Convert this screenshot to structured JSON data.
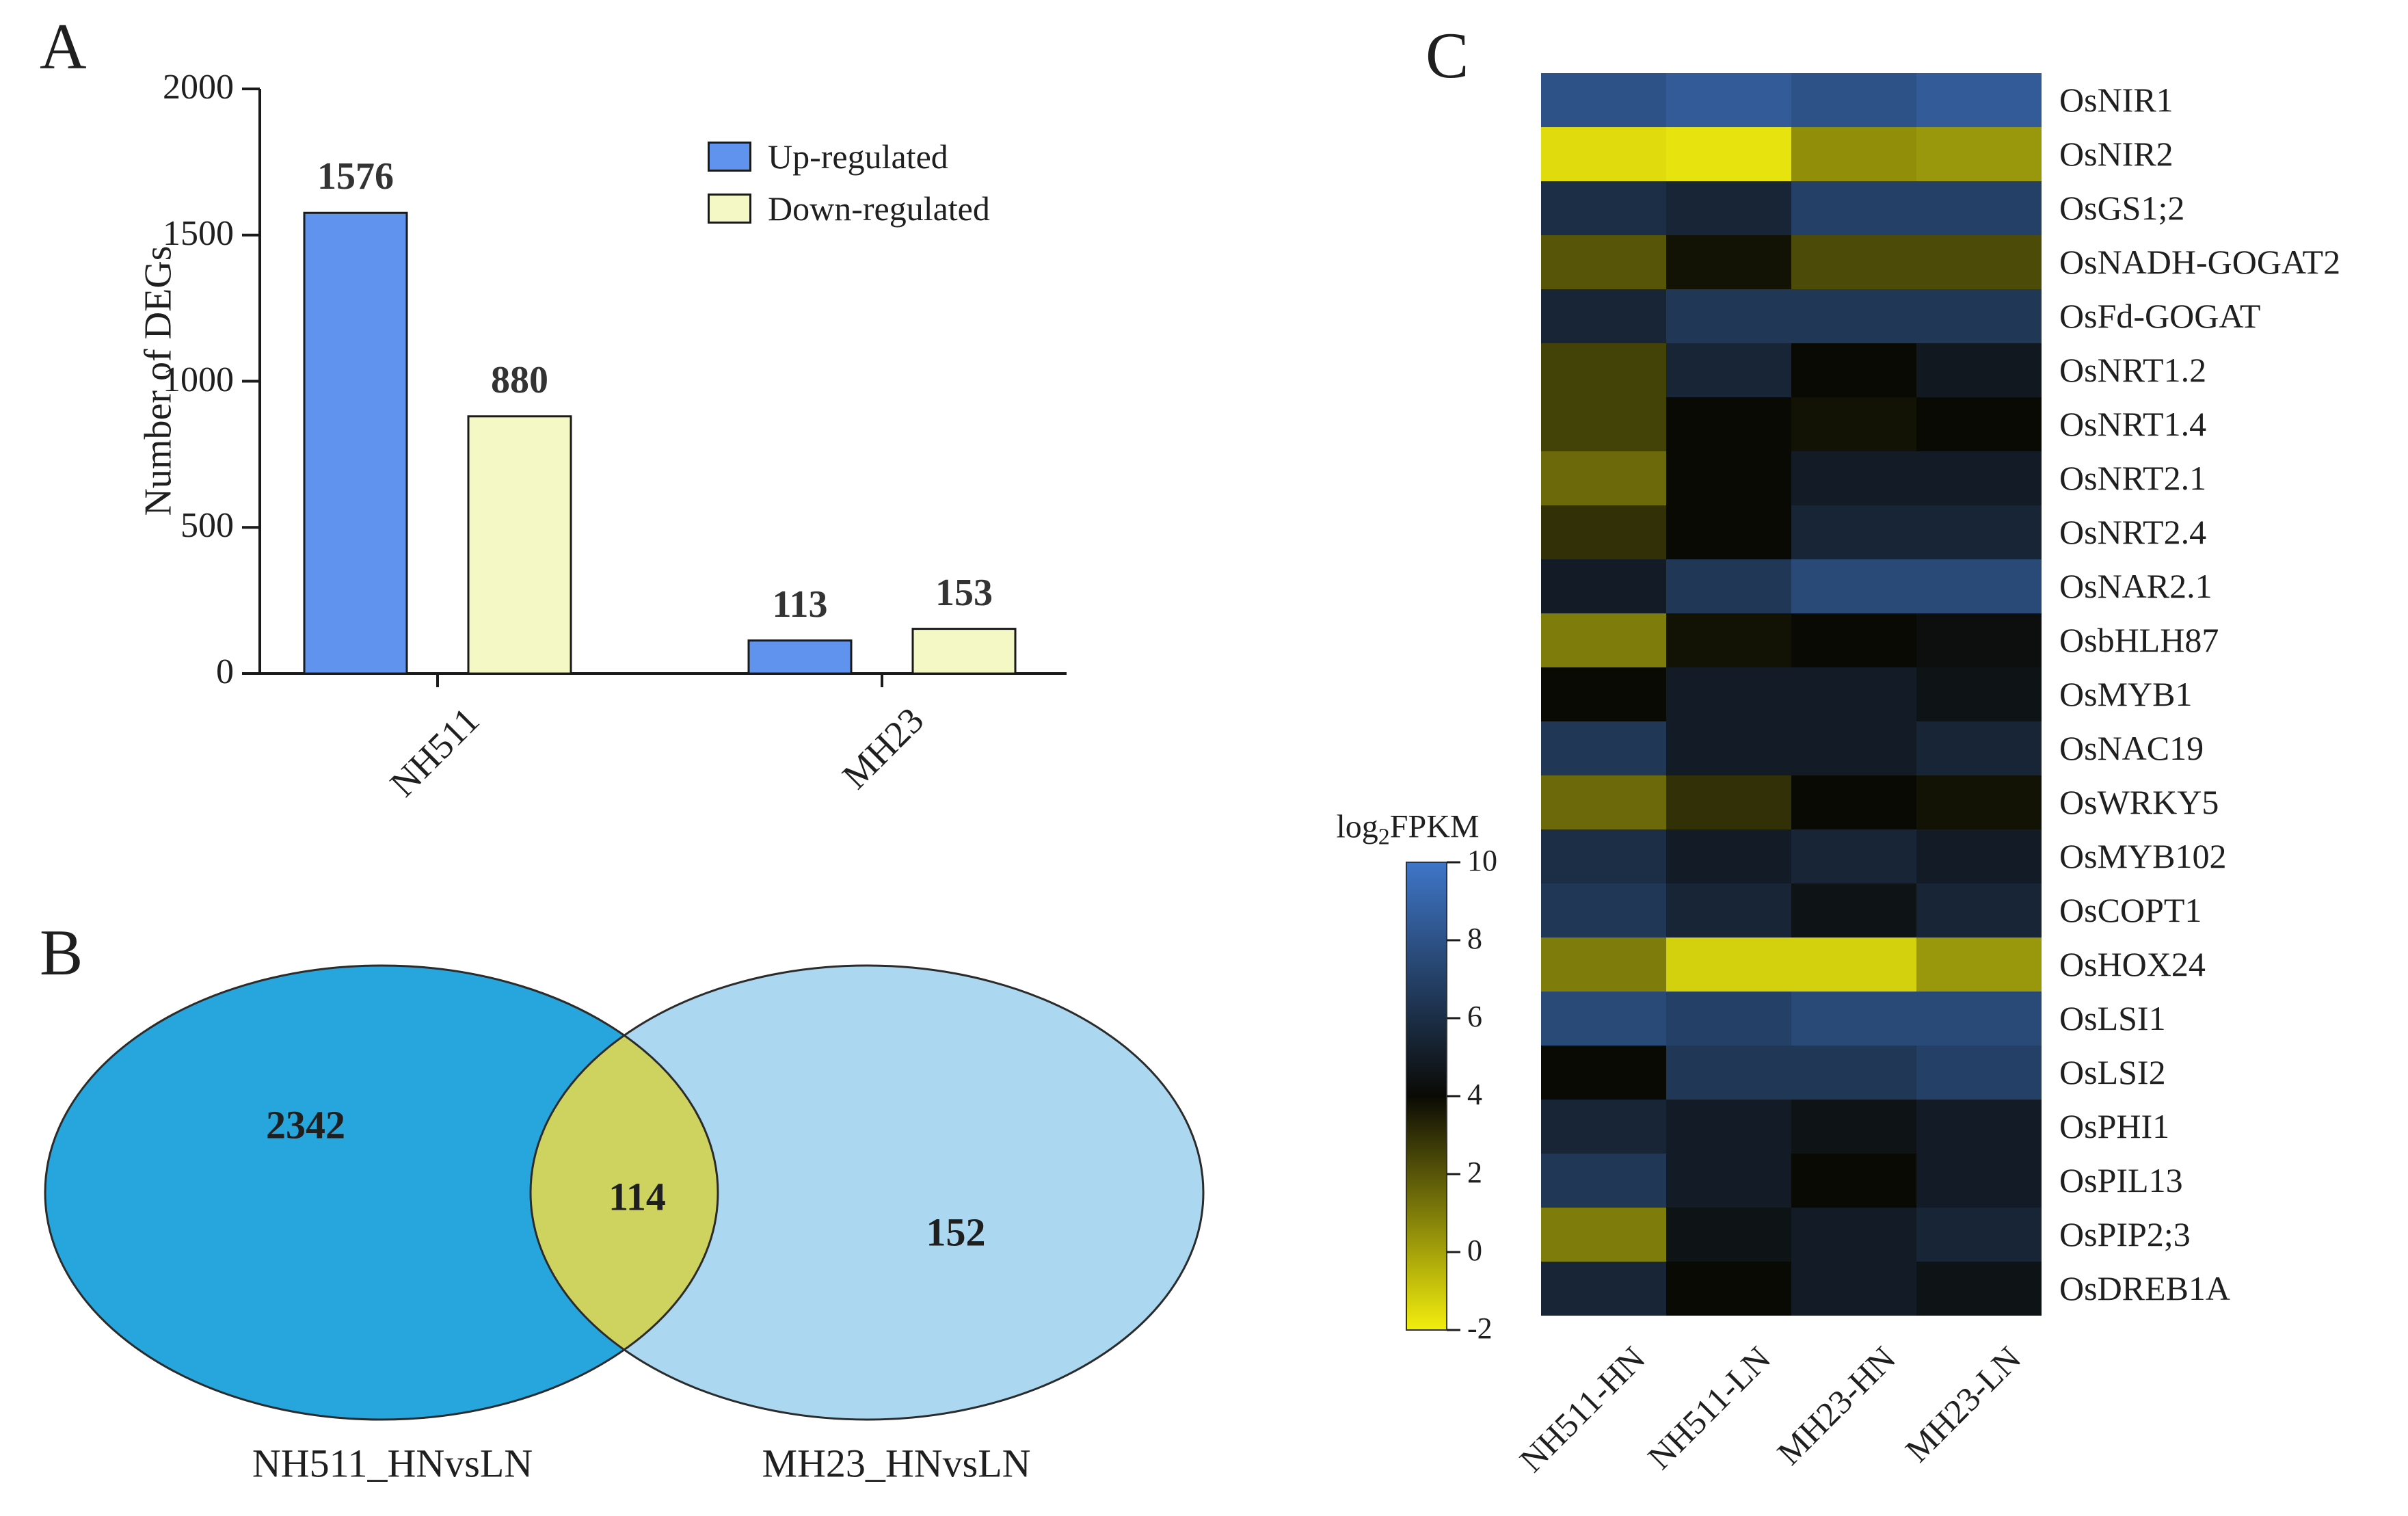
{
  "panels": {
    "a": "A",
    "b": "B",
    "c": "C"
  },
  "chart_data": [
    {
      "type": "bar",
      "panel": "A",
      "title": "",
      "xlabel": "",
      "ylabel": "Number of DEGs",
      "ylim": [
        0,
        2000
      ],
      "yticks": [
        0,
        500,
        1000,
        1500,
        2000
      ],
      "categories": [
        "NH511",
        "MH23"
      ],
      "series": [
        {
          "name": "Up-regulated",
          "color": "#5f93ee",
          "values": [
            1576,
            113
          ]
        },
        {
          "name": "Down-regulated",
          "color": "#f4f8c4",
          "values": [
            880,
            153
          ]
        }
      ],
      "legend_position": "top-right",
      "value_labels_shown": true,
      "grid": false
    },
    {
      "type": "venn",
      "panel": "B",
      "sets": [
        {
          "label": "NH511_HNvsLN",
          "unique_count": 2342,
          "color": "#27a5dd"
        },
        {
          "label": "MH23_HNvsLN",
          "unique_count": 152,
          "color": "#abd7f0"
        }
      ],
      "intersection_count": 114,
      "intersection_color": "#cdd35e"
    },
    {
      "type": "heatmap",
      "panel": "C",
      "colorbar_label": "log2FPKM",
      "colorbar_label_parts": {
        "prefix": "log",
        "sub": "2",
        "suffix": "FPKM"
      },
      "colorbar_ticks": [
        10,
        8,
        6,
        4,
        2,
        0,
        -2
      ],
      "color_stops": {
        "min_value": -2,
        "mid_value": 4,
        "max_value": 10,
        "min_color": "#f2ee0e",
        "mid_color": "#0a0a05",
        "max_color": "#3f76c8"
      },
      "columns": [
        "NH511-HN",
        "NH511-LN",
        "MH23-HN",
        "MH23-LN"
      ],
      "rows": [
        {
          "gene": "OsNIR1",
          "values": [
            8,
            8.5,
            8,
            8.5
          ]
        },
        {
          "gene": "OsNIR2",
          "values": [
            -1.5,
            -1.7,
            0.5,
            0.3
          ]
        },
        {
          "gene": "OsGS1;2",
          "values": [
            6,
            5.5,
            7,
            7
          ]
        },
        {
          "gene": "OsNADH-GOGAT2",
          "values": [
            2,
            3.8,
            2.3,
            2.3
          ]
        },
        {
          "gene": "OsFd-GOGAT",
          "values": [
            5.5,
            6.5,
            6.5,
            6.5
          ]
        },
        {
          "gene": "OsNRT1.2",
          "values": [
            2.5,
            5.5,
            4,
            4.8
          ]
        },
        {
          "gene": "OsNRT1.4",
          "values": [
            2.5,
            4,
            3.8,
            4
          ]
        },
        {
          "gene": "OsNRT2.1",
          "values": [
            1.5,
            4,
            5,
            5
          ]
        },
        {
          "gene": "OsNRT2.4",
          "values": [
            3,
            4,
            5.5,
            5.5
          ]
        },
        {
          "gene": "OsNAR2.1",
          "values": [
            5,
            6.5,
            7.5,
            7.5
          ]
        },
        {
          "gene": "OsbHLH87",
          "values": [
            1,
            3.8,
            4,
            4.3
          ]
        },
        {
          "gene": "OsMYB1",
          "values": [
            4,
            5,
            5,
            4.5
          ]
        },
        {
          "gene": "OsNAC19",
          "values": [
            6.5,
            5,
            5,
            5.5
          ]
        },
        {
          "gene": "OsWRKY5",
          "values": [
            1.5,
            3,
            4,
            3.8
          ]
        },
        {
          "gene": "OsMYB102",
          "values": [
            6,
            5,
            5.5,
            5
          ]
        },
        {
          "gene": "OsCOPT1",
          "values": [
            6.5,
            5.5,
            4.5,
            5.5
          ]
        },
        {
          "gene": "OsHOX24",
          "values": [
            1,
            -1.2,
            -1.2,
            0.3
          ]
        },
        {
          "gene": "OsLSI1",
          "values": [
            7.5,
            7,
            7.5,
            7.5
          ]
        },
        {
          "gene": "OsLSI2",
          "values": [
            4,
            6.5,
            6.5,
            7
          ]
        },
        {
          "gene": "OsPHI1",
          "values": [
            5.5,
            5,
            4.5,
            5
          ]
        },
        {
          "gene": "OsPIL13",
          "values": [
            6.5,
            5,
            4,
            5
          ]
        },
        {
          "gene": "OsPIP2;3",
          "values": [
            1,
            4.5,
            5,
            5.5
          ]
        },
        {
          "gene": "OsDREB1A",
          "values": [
            5.5,
            4,
            5,
            4.5
          ]
        }
      ]
    }
  ]
}
